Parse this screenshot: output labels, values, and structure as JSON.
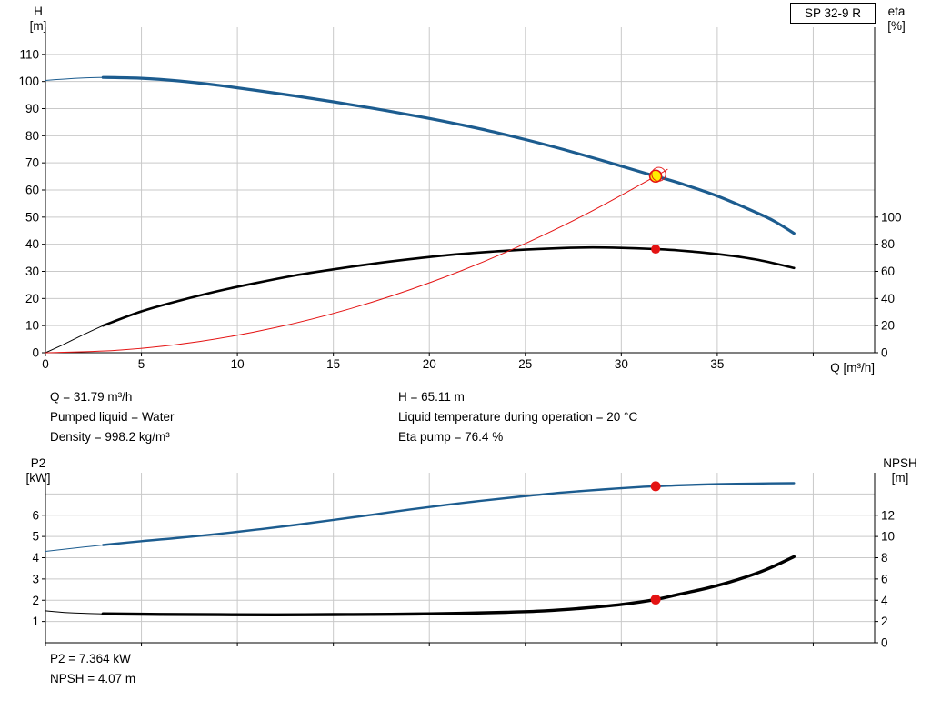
{
  "colors": {
    "grid": "#c9c9c9",
    "axis": "#000000",
    "text": "#000000"
  },
  "annotations": {
    "left": [
      "Q = 31.79 m³/h",
      "Pumped liquid = Water",
      "Density = 998.2 kg/m³"
    ],
    "right": [
      "H = 65.11 m",
      "Liquid temperature during operation = 20 °C",
      "Eta pump = 76.4 %"
    ],
    "bottom": [
      "P2 = 7.364 kW",
      "NPSH = 4.07 m"
    ]
  },
  "chart_data": [
    {
      "type": "line",
      "title": "SP 32-9 R",
      "x_axis": {
        "label": "Q [m³/h]",
        "min": 0,
        "max": 43.2,
        "ticks": [
          0,
          5,
          10,
          15,
          20,
          25,
          30,
          35,
          40
        ],
        "tick_labels": [
          0,
          5,
          10,
          15,
          20,
          25,
          30,
          35
        ],
        "grid": [
          5,
          10,
          15,
          20,
          25,
          30,
          35,
          40
        ]
      },
      "y_left": {
        "label": "H [m]",
        "label_lines": [
          "H",
          "[m]"
        ],
        "min": 0,
        "max": 120,
        "ticks": [
          0,
          10,
          20,
          30,
          40,
          50,
          60,
          70,
          80,
          90,
          100,
          110
        ],
        "grid": [
          10,
          20,
          30,
          40,
          50,
          60,
          70,
          80,
          90,
          100,
          110
        ]
      },
      "y_right": {
        "label": "eta [%]",
        "label_lines": [
          "eta",
          "[%]"
        ],
        "min": 0,
        "max": 240,
        "ticks": [
          0,
          20,
          40,
          60,
          80,
          100
        ]
      },
      "series": [
        {
          "name": "head-curve-lead",
          "axis": "left",
          "color": "#1c5c8f",
          "width": 1,
          "points": [
            [
              0,
              100.4
            ],
            [
              1,
              100.9
            ],
            [
              2,
              101.3
            ],
            [
              3,
              101.5
            ]
          ]
        },
        {
          "name": "head-curve",
          "axis": "left",
          "color": "#1c5c8f",
          "width": 3.2,
          "points": [
            [
              3,
              101.5
            ],
            [
              5,
              101.2
            ],
            [
              7,
              100.2
            ],
            [
              9,
              98.6
            ],
            [
              11,
              96.7
            ],
            [
              13,
              94.7
            ],
            [
              15,
              92.5
            ],
            [
              17,
              90.2
            ],
            [
              19,
              87.7
            ],
            [
              21,
              85.0
            ],
            [
              23,
              82.0
            ],
            [
              25,
              78.6
            ],
            [
              27,
              74.9
            ],
            [
              29,
              70.9
            ],
            [
              31,
              66.7
            ],
            [
              31.79,
              65.11
            ],
            [
              33,
              62.6
            ],
            [
              35,
              57.8
            ],
            [
              37,
              51.8
            ],
            [
              38,
              48.4
            ],
            [
              39,
              44.0
            ]
          ]
        },
        {
          "name": "eta-curve-lead",
          "axis": "right",
          "color": "#000000",
          "width": 1,
          "points": [
            [
              0,
              0
            ],
            [
              1,
              6.5
            ],
            [
              2,
              13.5
            ],
            [
              3,
              20
            ]
          ]
        },
        {
          "name": "eta-curve",
          "axis": "right",
          "color": "#000000",
          "width": 2.6,
          "points": [
            [
              3,
              20
            ],
            [
              5,
              30.5
            ],
            [
              7,
              38.5
            ],
            [
              9,
              45.5
            ],
            [
              11,
              51.5
            ],
            [
              13,
              57
            ],
            [
              15,
              61.5
            ],
            [
              17,
              65.5
            ],
            [
              19,
              69
            ],
            [
              21,
              72
            ],
            [
              23,
              74.3
            ],
            [
              25,
              76
            ],
            [
              27,
              77.2
            ],
            [
              28.5,
              77.6
            ],
            [
              30,
              77.3
            ],
            [
              31.79,
              76.4
            ],
            [
              33,
              75.4
            ],
            [
              35,
              72.8
            ],
            [
              37,
              68.8
            ],
            [
              39,
              62.5
            ]
          ]
        },
        {
          "name": "system-curve",
          "axis": "left",
          "color": "#e41313",
          "width": 1,
          "points": [
            [
              0,
              0
            ],
            [
              4,
              1.03
            ],
            [
              8,
              4.12
            ],
            [
              12,
              9.28
            ],
            [
              16,
              16.49
            ],
            [
              20,
              25.77
            ],
            [
              24,
              37.1
            ],
            [
              28,
              50.5
            ],
            [
              31.79,
              65.11
            ],
            [
              32.4,
              67.6
            ]
          ]
        }
      ],
      "markers": [
        {
          "name": "duty-point",
          "axis": "left",
          "q": 31.79,
          "value": 65.11,
          "r": 6.5,
          "fill": "#ffed00",
          "stroke": "#e41313",
          "stroke_width": 1.6
        },
        {
          "name": "duty-point-ring",
          "axis": "left",
          "q": 31.95,
          "value": 65.8,
          "r": 7.6,
          "fill": "none",
          "stroke": "#e41313",
          "stroke_width": 0.9
        },
        {
          "name": "eta-point",
          "axis": "right",
          "q": 31.79,
          "value": 76.4,
          "r": 5,
          "fill": "#e41313",
          "stroke": "none",
          "stroke_width": 0
        }
      ]
    },
    {
      "type": "line",
      "title": "",
      "x_axis": {
        "label": "",
        "min": 0,
        "max": 43.2,
        "ticks": [
          0,
          5,
          10,
          15,
          20,
          25,
          30,
          35,
          40
        ],
        "tick_labels": [],
        "grid": [
          5,
          10,
          15,
          20,
          25,
          30,
          35,
          40
        ]
      },
      "y_left": {
        "label": "P2 [kW]",
        "label_lines": [
          "P2",
          "[kW]"
        ],
        "min": 0,
        "max": 8,
        "ticks": [
          1,
          2,
          3,
          4,
          5,
          6
        ],
        "grid": [
          1,
          2,
          3,
          4,
          5,
          6,
          7
        ]
      },
      "y_right": {
        "label": "NPSH [m]",
        "label_lines": [
          "NPSH",
          "[m]"
        ],
        "min": 0,
        "max": 16,
        "ticks": [
          0,
          2,
          4,
          6,
          8,
          10,
          12
        ]
      },
      "series": [
        {
          "name": "p2-curve-lead",
          "axis": "left",
          "color": "#1c5c8f",
          "width": 1,
          "points": [
            [
              0,
              4.3
            ],
            [
              1,
              4.4
            ],
            [
              2,
              4.5
            ],
            [
              3,
              4.6
            ]
          ]
        },
        {
          "name": "p2-curve",
          "axis": "left",
          "color": "#1c5c8f",
          "width": 2.4,
          "points": [
            [
              3,
              4.6
            ],
            [
              5,
              4.78
            ],
            [
              7,
              4.94
            ],
            [
              9,
              5.12
            ],
            [
              11,
              5.32
            ],
            [
              13,
              5.54
            ],
            [
              15,
              5.78
            ],
            [
              17,
              6.02
            ],
            [
              19,
              6.27
            ],
            [
              21,
              6.5
            ],
            [
              23,
              6.71
            ],
            [
              25,
              6.9
            ],
            [
              27,
              7.07
            ],
            [
              29,
              7.21
            ],
            [
              31,
              7.33
            ],
            [
              31.79,
              7.364
            ],
            [
              33,
              7.41
            ],
            [
              35,
              7.46
            ],
            [
              37,
              7.49
            ],
            [
              39,
              7.51
            ]
          ]
        },
        {
          "name": "npsh-curve-lead",
          "axis": "right",
          "color": "#000000",
          "width": 1,
          "points": [
            [
              0,
              3.0
            ],
            [
              1,
              2.85
            ],
            [
              2,
              2.77
            ],
            [
              3,
              2.72
            ]
          ]
        },
        {
          "name": "npsh-curve",
          "axis": "right",
          "color": "#000000",
          "width": 3.4,
          "points": [
            [
              3,
              2.72
            ],
            [
              6,
              2.67
            ],
            [
              9,
              2.64
            ],
            [
              12,
              2.63
            ],
            [
              15,
              2.65
            ],
            [
              18,
              2.68
            ],
            [
              20,
              2.72
            ],
            [
              22,
              2.78
            ],
            [
              24,
              2.87
            ],
            [
              26,
              3.0
            ],
            [
              28,
              3.25
            ],
            [
              30,
              3.6
            ],
            [
              31.79,
              4.07
            ],
            [
              33,
              4.55
            ],
            [
              34.5,
              5.15
            ],
            [
              36,
              5.9
            ],
            [
              37.5,
              6.85
            ],
            [
              39,
              8.1
            ]
          ]
        }
      ],
      "markers": [
        {
          "name": "p2-point",
          "axis": "left",
          "q": 31.79,
          "value": 7.364,
          "r": 5.5,
          "fill": "#e41313",
          "stroke": "none",
          "stroke_width": 0
        },
        {
          "name": "npsh-point",
          "axis": "right",
          "q": 31.79,
          "value": 4.07,
          "r": 5.5,
          "fill": "#e41313",
          "stroke": "none",
          "stroke_width": 0
        }
      ]
    }
  ]
}
